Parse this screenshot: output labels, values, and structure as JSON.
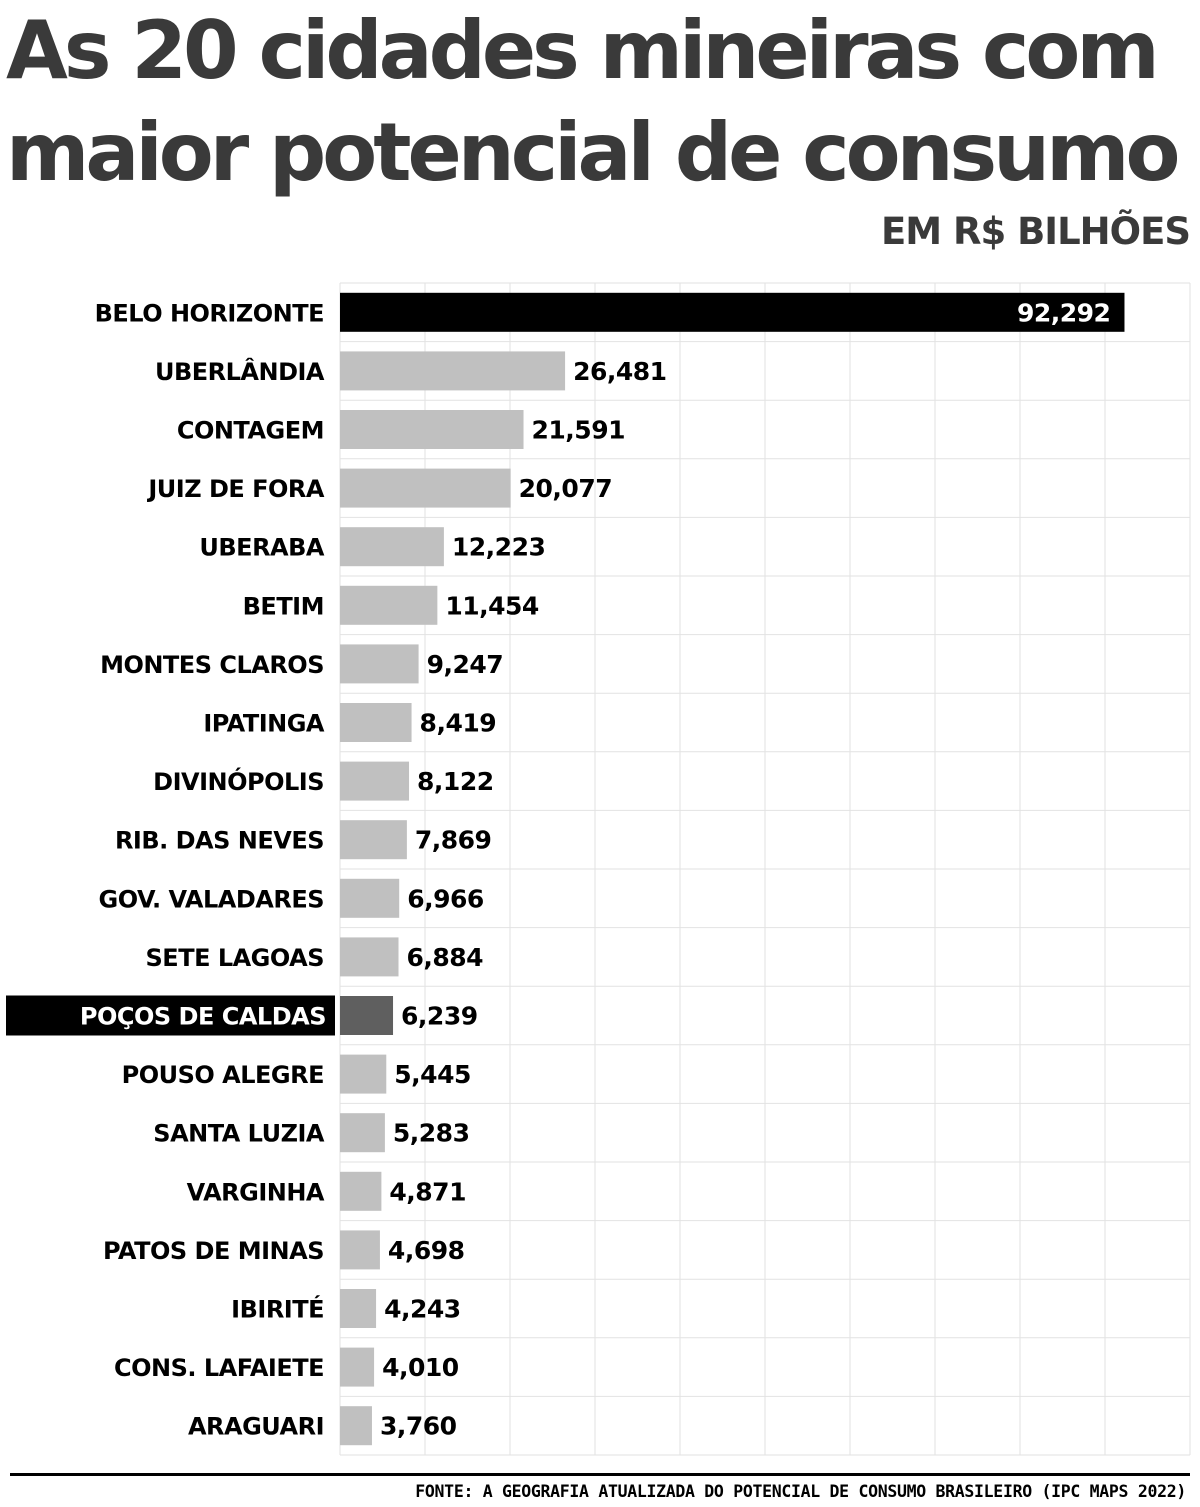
{
  "title": "As 20 cidades mineiras com maior potencial de consumo",
  "unit_label": "EM R$ BILHÕES",
  "source": "FONTE: A GEOGRAFIA ATUALIZADA DO POTENCIAL DE CONSUMO BRASILEIRO (IPC MAPS 2022)",
  "colors": {
    "default_bar": "#c0c0c0",
    "top_bar": "#000000",
    "highlight_bar": "#5f5f5f",
    "highlight_label_bg": "#000000",
    "grid": "#e2e2e2",
    "title": "#3a3a3a"
  },
  "chart_data": {
    "type": "bar",
    "orientation": "horizontal",
    "title": "As 20 cidades mineiras com maior potencial de consumo",
    "unit": "EM R$ BILHÕES",
    "categories": [
      "BELO HORIZONTE",
      "UBERLÂNDIA",
      "CONTAGEM",
      "JUIZ DE FORA",
      "UBERABA",
      "BETIM",
      "MONTES CLAROS",
      "IPATINGA",
      "DIVINÓPOLIS",
      "RIB. DAS NEVES",
      "GOV. VALADARES",
      "SETE LAGOAS",
      "POÇOS DE CALDAS",
      "POUSO ALEGRE",
      "SANTA LUZIA",
      "VARGINHA",
      "PATOS DE MINAS",
      "IBIRITÉ",
      "CONS. LAFAIETE",
      "ARAGUARI"
    ],
    "values": [
      92.292,
      26.481,
      21.591,
      20.077,
      12.223,
      11.454,
      9.247,
      8.419,
      8.122,
      7.869,
      6.966,
      6.884,
      6.239,
      5.445,
      5.283,
      4.871,
      4.698,
      4.243,
      4.01,
      3.76
    ],
    "value_labels": [
      "92,292",
      "26,481",
      "21,591",
      "20,077",
      "12,223",
      "11,454",
      "9,247",
      "8,419",
      "8,122",
      "7,869",
      "6,966",
      "6,884",
      "6,239",
      "5,445",
      "5,283",
      "4,871",
      "4,698",
      "4,243",
      "4,010",
      "3,760"
    ],
    "highlight": "POÇOS DE CALDAS",
    "xlim": [
      0,
      100
    ],
    "grid": true
  }
}
